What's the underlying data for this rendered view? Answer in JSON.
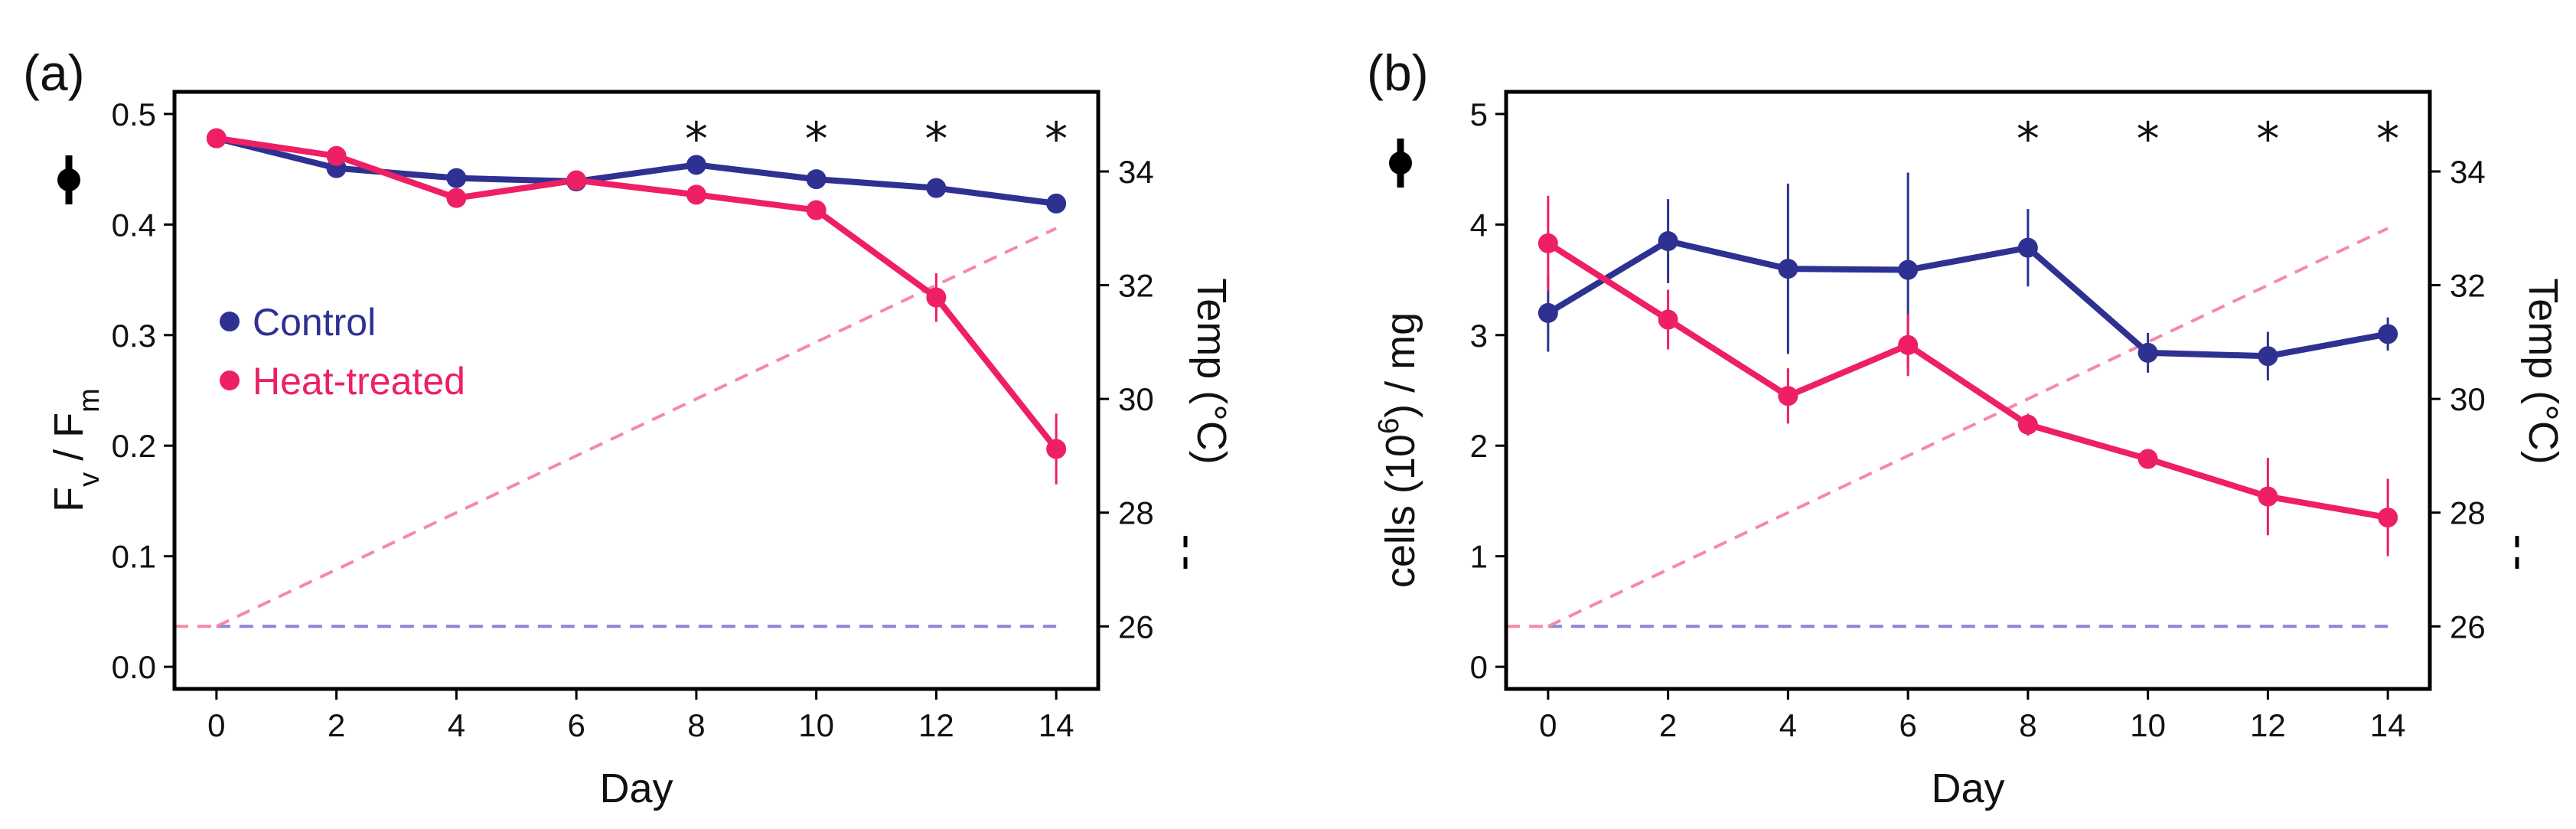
{
  "colors": {
    "control": "#2e3192",
    "heat": "#ee1f64",
    "temp_control": "#8b86d8",
    "temp_heat": "#f58aa2"
  },
  "legend": [
    {
      "label": "Control",
      "color": "#2e3192"
    },
    {
      "label": "Heat-treated",
      "color": "#ee1f64"
    }
  ],
  "chart_data": [
    {
      "type": "line",
      "panel_label": "(a)",
      "xlabel": "Day",
      "ylabel": "Fv / Fm",
      "ylabel_main": "F",
      "ylabel_sub1": "v",
      "ylabel_mid": " / F",
      "ylabel_sub2": "m",
      "y2label": "Temp (°C)",
      "x_ticks": [
        "0",
        "2",
        "4",
        "6",
        "8",
        "10",
        "12",
        "14"
      ],
      "y_ticks": [
        "0.0",
        "0.1",
        "0.2",
        "0.3",
        "0.4",
        "0.5"
      ],
      "y2_ticks": [
        "26",
        "28",
        "30",
        "32",
        "34"
      ],
      "xlim": [
        -0.7,
        14.7
      ],
      "ylim": [
        -0.02,
        0.52
      ],
      "y2lim": [
        24.9,
        35.4
      ],
      "x": [
        0,
        2,
        4,
        6,
        8,
        10,
        12,
        14
      ],
      "series": [
        {
          "name": "Control",
          "values": [
            0.478,
            0.451,
            0.442,
            0.439,
            0.454,
            0.441,
            0.433,
            0.419
          ],
          "err": [
            0.004,
            0.004,
            0.004,
            0.004,
            0.004,
            0.004,
            0.004,
            0.004
          ]
        },
        {
          "name": "Heat-treated",
          "values": [
            0.478,
            0.462,
            0.424,
            0.44,
            0.427,
            0.413,
            0.334,
            0.197
          ],
          "err": [
            0.004,
            0.004,
            0.004,
            0.004,
            0.004,
            0.004,
            0.022,
            0.032
          ]
        }
      ],
      "temperature": [
        {
          "name": "Control",
          "x": [
            0,
            14
          ],
          "values": [
            26,
            26
          ]
        },
        {
          "name": "Heat-treated",
          "x": [
            0,
            14
          ],
          "values": [
            26,
            33
          ]
        }
      ],
      "significance_days": [
        8,
        10,
        12,
        14
      ],
      "significance_mark": "*"
    },
    {
      "type": "line",
      "panel_label": "(b)",
      "xlabel": "Day",
      "ylabel": "cells (10⁶) / mg",
      "ylabel_main": "cells (10",
      "ylabel_sup": "6",
      "ylabel_tail": ") / mg",
      "y2label": "Temp (°C)",
      "x_ticks": [
        "0",
        "2",
        "4",
        "6",
        "8",
        "10",
        "12",
        "14"
      ],
      "y_ticks": [
        "0",
        "1",
        "2",
        "3",
        "4",
        "5"
      ],
      "y2_ticks": [
        "26",
        "28",
        "30",
        "32",
        "34"
      ],
      "xlim": [
        -0.7,
        14.7
      ],
      "ylim": [
        -0.2,
        5.2
      ],
      "y2lim": [
        24.9,
        35.4
      ],
      "x": [
        0,
        2,
        4,
        6,
        8,
        10,
        12,
        14
      ],
      "series": [
        {
          "name": "Control",
          "values": [
            3.2,
            3.85,
            3.6,
            3.59,
            3.79,
            2.84,
            2.81,
            3.01
          ],
          "err": [
            0.35,
            0.38,
            0.77,
            0.88,
            0.35,
            0.18,
            0.22,
            0.15
          ]
        },
        {
          "name": "Heat-treated",
          "values": [
            3.83,
            3.14,
            2.45,
            2.91,
            2.19,
            1.88,
            1.54,
            1.35
          ],
          "err": [
            0.43,
            0.27,
            0.25,
            0.28,
            0.1,
            0.08,
            0.35,
            0.35
          ]
        }
      ],
      "temperature": [
        {
          "name": "Control",
          "x": [
            0,
            14
          ],
          "values": [
            26,
            26
          ]
        },
        {
          "name": "Heat-treated",
          "x": [
            0,
            14
          ],
          "values": [
            26,
            33
          ]
        }
      ],
      "significance_days": [
        8,
        10,
        12,
        14
      ],
      "significance_mark": "*"
    }
  ]
}
